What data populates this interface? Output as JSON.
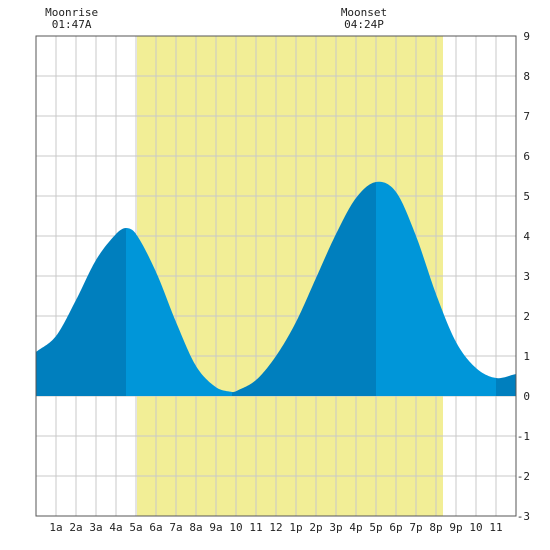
{
  "chart_data": {
    "type": "area",
    "title": "",
    "xlabel": "",
    "ylabel": "",
    "xlim": [
      0,
      24
    ],
    "ylim": [
      -3,
      9
    ],
    "grid": true,
    "x_tick_labels": [
      "1a",
      "2a",
      "3a",
      "4a",
      "5a",
      "6a",
      "7a",
      "8a",
      "9a",
      "10",
      "11",
      "12",
      "1p",
      "2p",
      "3p",
      "4p",
      "5p",
      "6p",
      "7p",
      "8p",
      "9p",
      "10",
      "11"
    ],
    "y_tick_labels": [
      "-3",
      "-2",
      "-1",
      "0",
      "1",
      "2",
      "3",
      "4",
      "5",
      "6",
      "7",
      "8",
      "9"
    ],
    "annotations": [
      {
        "label": "Moonrise",
        "time": "01:47A",
        "hour": 1.783
      },
      {
        "label": "Moonset",
        "time": "04:24P",
        "hour": 16.4
      }
    ],
    "daylight": {
      "start_hour": 5.05,
      "end_hour": 20.35
    },
    "extremes": [
      {
        "type": "high",
        "hour": 4.5,
        "value": 4.2
      },
      {
        "type": "low",
        "hour": 9.8,
        "value": 0.1
      },
      {
        "type": "high",
        "hour": 17.0,
        "value": 5.35
      },
      {
        "type": "low",
        "hour": 23.0,
        "value": 0.45
      }
    ],
    "series": [
      {
        "x": [
          0,
          1,
          2,
          3,
          4,
          4.5,
          5,
          6,
          7,
          8,
          9,
          9.8,
          10,
          11,
          12,
          13,
          14,
          15,
          16,
          17,
          18,
          19,
          20,
          21,
          22,
          23,
          24
        ],
        "values": [
          1.1,
          1.5,
          2.4,
          3.4,
          4.05,
          4.2,
          4.05,
          3.1,
          1.85,
          0.75,
          0.22,
          0.1,
          0.12,
          0.4,
          1.0,
          1.85,
          2.95,
          4.05,
          4.95,
          5.35,
          5.1,
          4.0,
          2.55,
          1.35,
          0.7,
          0.45,
          0.55
        ]
      }
    ],
    "colors": {
      "daylight": "#f2ee96",
      "tide_light": "#0096d9",
      "tide_dark": "#007fbe",
      "grid": "#c8c8c8",
      "border": "#555555"
    }
  }
}
